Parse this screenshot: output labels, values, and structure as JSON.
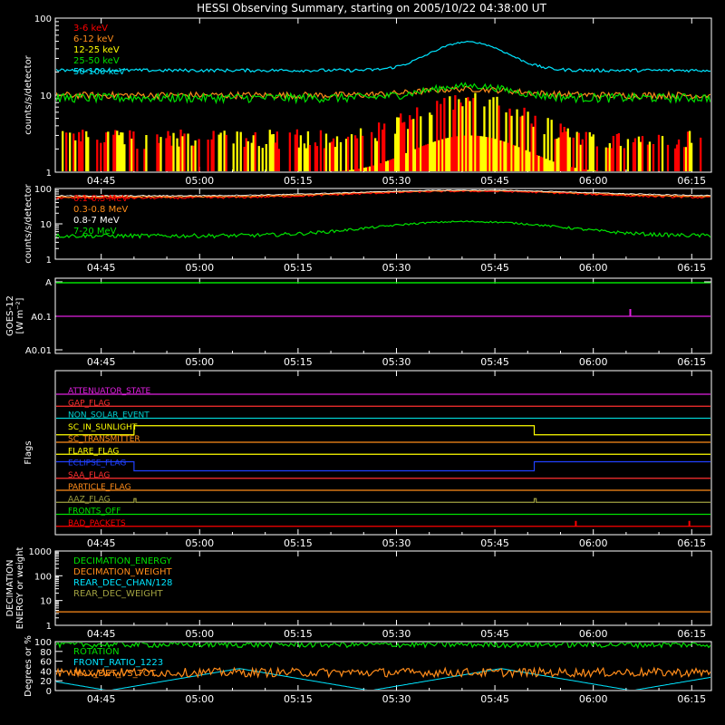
{
  "title": "HESSI Observing Summary, starting on 2005/10/22 04:38:00 UT",
  "time_ticks": [
    "04:45",
    "05:00",
    "05:15",
    "05:30",
    "05:45",
    "06:00",
    "06:15"
  ],
  "chart_data": [
    {
      "type": "line",
      "ylabel": "counts/s/detector",
      "yscale": "log",
      "ylim": [
        1,
        100
      ],
      "yticks": [
        "100",
        "10",
        "1"
      ],
      "legend": "top-left",
      "series": [
        {
          "name": "3-6 keV",
          "color": "#ff0000"
        },
        {
          "name": "6-12 keV",
          "color": "#ff8c1a"
        },
        {
          "name": "12-25 keV",
          "color": "#ffff00"
        },
        {
          "name": "25-50 keV",
          "color": "#00e000"
        },
        {
          "name": "50-100 keV",
          "color": "#00e5ff"
        }
      ]
    },
    {
      "type": "line",
      "ylabel": "counts/s/detector",
      "yscale": "log",
      "ylim": [
        1,
        100
      ],
      "yticks": [
        "100",
        "10",
        "1"
      ],
      "legend": "top-left",
      "series": [
        {
          "name": "0.1-0.3 MeV",
          "color": "#ff0000"
        },
        {
          "name": "0.3-0.8 MeV",
          "color": "#ff8c1a"
        },
        {
          "name": "0.8-7 MeV",
          "color": "#ffffff"
        },
        {
          "name": "7-20 MeV",
          "color": "#00e000"
        }
      ]
    },
    {
      "type": "line",
      "ylabel": "GOES-12",
      "ylabel2": "[W m⁻²]",
      "yticks": [
        "A",
        "A0.1",
        "A0.01"
      ],
      "series": [
        {
          "name": "",
          "color": "#00e000"
        },
        {
          "name": "",
          "color": "#e020e0"
        }
      ]
    },
    {
      "type": "line",
      "ylabel": "Flags",
      "flags": [
        {
          "name": "ATTENUATOR_STATE",
          "color": "#e020e0"
        },
        {
          "name": "GAP_FLAG",
          "color": "#ff3030"
        },
        {
          "name": "NON_SOLAR_EVENT",
          "color": "#00d0d0"
        },
        {
          "name": "SC_IN_SUNLIGHT",
          "color": "#ffff00"
        },
        {
          "name": "SC_TRANSMITTER",
          "color": "#ff8c1a"
        },
        {
          "name": "FLARE_FLAG",
          "color": "#ffff00"
        },
        {
          "name": "ECLIPSE_FLAG",
          "color": "#2040ff"
        },
        {
          "name": "SAA_FLAG",
          "color": "#ff3030"
        },
        {
          "name": "PARTICLE_FLAG",
          "color": "#ff8c1a"
        },
        {
          "name": "AAZ_FLAG",
          "color": "#a0a040"
        },
        {
          "name": "FRONTS_OFF",
          "color": "#00e000"
        },
        {
          "name": "BAD_PACKETS",
          "color": "#ff0000"
        }
      ]
    },
    {
      "type": "line",
      "ylabel": "DECIMATION",
      "ylabel2": "ENERGY or weight",
      "yscale": "log",
      "ylim": [
        1,
        1000
      ],
      "yticks": [
        "1000",
        "100",
        "10",
        "1"
      ],
      "legend": "top-left",
      "series": [
        {
          "name": "DECIMATION_ENERGY",
          "color": "#00e000"
        },
        {
          "name": "DECIMATION_WEIGHT",
          "color": "#ff8c1a"
        },
        {
          "name": "REAR_DEC_CHAN/128",
          "color": "#00e5ff"
        },
        {
          "name": "REAR_DEC_WEIGHT",
          "color": "#a0a040"
        }
      ]
    },
    {
      "type": "line",
      "ylabel": "Degrees or %",
      "ylim": [
        0,
        100
      ],
      "yticks": [
        "100",
        "80",
        "60",
        "40",
        "20",
        "0"
      ],
      "legend": "top-left",
      "series": [
        {
          "name": "ROTATION",
          "color": "#00e000"
        },
        {
          "name": "FRONT_RATIO_1223",
          "color": "#00e5ff"
        },
        {
          "name": "MAX_DET_VS_TOT",
          "color": "#ff8c1a"
        }
      ]
    }
  ]
}
